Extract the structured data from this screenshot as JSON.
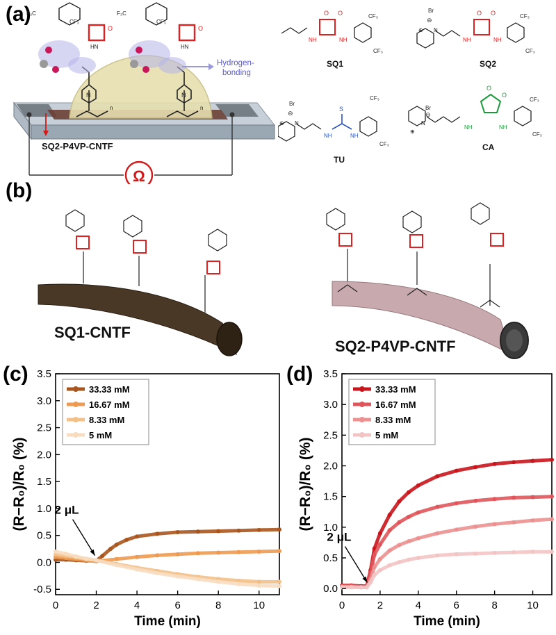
{
  "panels": {
    "a": {
      "label": "(a)",
      "device_caption": "SQ2-P4VP-CNTF",
      "hbond_label_line1": "Hydrogen-",
      "hbond_label_line2": "bonding",
      "ohm_symbol": "Ω",
      "compounds": [
        {
          "name": "SQ1"
        },
        {
          "name": "SQ2"
        },
        {
          "name": "TU"
        },
        {
          "name": "CA"
        }
      ],
      "chem": {
        "cf3": "CF₃",
        "f3c": "F₃C",
        "hn": "HN",
        "nh": "NH",
        "o": "O",
        "n": "N",
        "s": "S",
        "br": "Br",
        "minus": "⊖",
        "plus": "⊕",
        "subscript_n": "n"
      }
    },
    "b": {
      "label": "(b)",
      "fiber_left": "SQ1-CNTF",
      "fiber_right": "SQ2-P4VP-CNTF"
    },
    "c": {
      "label": "(c)"
    },
    "d": {
      "label": "(d)"
    }
  },
  "colors": {
    "squaramide": "#e02020",
    "thiourea": "#2a52be",
    "croconamide": "#1a9a3a",
    "hbond": "#5a5ad0"
  },
  "chart_data": [
    {
      "type": "line",
      "panel": "c",
      "xlabel": "Time (min)",
      "ylabel": "(R−R₀)/R₀ (%)",
      "xlim": [
        0,
        11
      ],
      "ylim": [
        -0.6,
        3.5
      ],
      "xticks": [
        0,
        2,
        4,
        6,
        8,
        10
      ],
      "yticks": [
        -0.5,
        0.0,
        0.5,
        1.0,
        1.5,
        2.0,
        2.5,
        3.0,
        3.5
      ],
      "ytick_labels": [
        "-0.5",
        "0.0",
        "0.5",
        "1.0",
        "1.5",
        "2.0",
        "2.5",
        "3.0",
        "3.5"
      ],
      "annotation": {
        "text": "2 μL",
        "x": 2.0,
        "y": 0.05
      },
      "legend_position": "top-left",
      "series": [
        {
          "name": "33.33 mM",
          "color": "#a8551e",
          "x": [
            0,
            0.5,
            1,
            1.5,
            2,
            2.3,
            2.7,
            3,
            3.5,
            4,
            5,
            6,
            7,
            8,
            9,
            10,
            11
          ],
          "y": [
            0.05,
            0.05,
            0.04,
            0.03,
            0.03,
            0.12,
            0.25,
            0.33,
            0.42,
            0.48,
            0.53,
            0.56,
            0.57,
            0.58,
            0.59,
            0.6,
            0.61
          ]
        },
        {
          "name": "16.67 mM",
          "color": "#ee9a50",
          "x": [
            0,
            0.5,
            1,
            1.5,
            2,
            3,
            4,
            5,
            6,
            7,
            8,
            9,
            10,
            11
          ],
          "y": [
            0.1,
            0.08,
            0.06,
            0.04,
            0.02,
            0.06,
            0.1,
            0.13,
            0.15,
            0.17,
            0.18,
            0.19,
            0.2,
            0.21
          ]
        },
        {
          "name": "8.33 mM",
          "color": "#f3c088",
          "x": [
            0,
            0.5,
            1,
            1.5,
            2,
            3,
            4,
            5,
            6,
            7,
            8,
            9,
            10,
            11
          ],
          "y": [
            0.15,
            0.12,
            0.09,
            0.06,
            0.04,
            -0.03,
            -0.1,
            -0.16,
            -0.22,
            -0.27,
            -0.31,
            -0.34,
            -0.36,
            -0.36
          ]
        },
        {
          "name": "5 mM",
          "color": "#f7dcc0",
          "x": [
            0,
            0.5,
            1,
            1.5,
            2,
            3,
            4,
            5,
            6,
            7,
            8,
            9,
            10,
            11
          ],
          "y": [
            0.2,
            0.16,
            0.11,
            0.07,
            0.04,
            -0.05,
            -0.13,
            -0.2,
            -0.26,
            -0.31,
            -0.36,
            -0.4,
            -0.43,
            -0.44
          ]
        }
      ]
    },
    {
      "type": "line",
      "panel": "d",
      "xlabel": "Time (min)",
      "ylabel": "(R−R₀)/R₀ (%)",
      "xlim": [
        0,
        11
      ],
      "ylim": [
        -0.1,
        3.5
      ],
      "xticks": [
        0,
        2,
        4,
        6,
        8,
        10
      ],
      "yticks": [
        0.0,
        0.5,
        1.0,
        1.5,
        2.0,
        2.5,
        3.0,
        3.5
      ],
      "ytick_labels": [
        "0.0",
        "0.5",
        "1.0",
        "1.5",
        "2.0",
        "2.5",
        "3.0",
        "3.5"
      ],
      "annotation": {
        "text": "2 μL",
        "x": 1.4,
        "y": 0.03
      },
      "legend_position": "top-left",
      "series": [
        {
          "name": "33.33 mM",
          "color": "#c8161c",
          "x": [
            0,
            0.5,
            1,
            1.3,
            1.5,
            1.7,
            2,
            2.5,
            3,
            3.5,
            4,
            5,
            6,
            7,
            8,
            9,
            10,
            11
          ],
          "y": [
            0.05,
            0.05,
            0.04,
            0.04,
            0.3,
            0.65,
            0.9,
            1.2,
            1.42,
            1.57,
            1.68,
            1.83,
            1.92,
            1.98,
            2.03,
            2.06,
            2.08,
            2.1
          ]
        },
        {
          "name": "16.67 mM",
          "color": "#e0555a",
          "x": [
            0,
            0.5,
            1,
            1.3,
            1.5,
            1.7,
            2,
            2.5,
            3,
            3.5,
            4,
            5,
            6,
            7,
            8,
            9,
            10,
            11
          ],
          "y": [
            0.04,
            0.04,
            0.03,
            0.03,
            0.25,
            0.55,
            0.72,
            0.95,
            1.08,
            1.17,
            1.24,
            1.33,
            1.39,
            1.43,
            1.46,
            1.48,
            1.49,
            1.5
          ]
        },
        {
          "name": "8.33 mM",
          "color": "#ec9090",
          "x": [
            0,
            0.5,
            1,
            1.3,
            1.5,
            1.7,
            2,
            2.5,
            3,
            3.5,
            4,
            5,
            6,
            7,
            8,
            9,
            10,
            11
          ],
          "y": [
            0.03,
            0.03,
            0.02,
            0.02,
            0.15,
            0.35,
            0.48,
            0.62,
            0.71,
            0.77,
            0.82,
            0.9,
            0.96,
            1.01,
            1.05,
            1.08,
            1.11,
            1.13
          ]
        },
        {
          "name": "5 mM",
          "color": "#f3c4c4",
          "x": [
            0,
            0.5,
            1,
            1.3,
            1.5,
            1.7,
            2,
            2.5,
            3,
            3.5,
            4,
            5,
            6,
            7,
            8,
            9,
            10,
            11
          ],
          "y": [
            0.02,
            0.02,
            0.02,
            0.02,
            0.1,
            0.22,
            0.3,
            0.38,
            0.43,
            0.47,
            0.5,
            0.54,
            0.56,
            0.57,
            0.58,
            0.59,
            0.6,
            0.6
          ]
        }
      ]
    }
  ]
}
